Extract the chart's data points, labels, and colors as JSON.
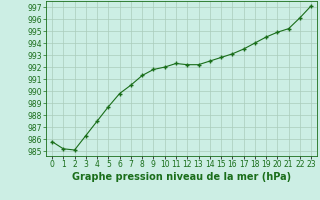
{
  "x": [
    0,
    1,
    2,
    3,
    4,
    5,
    6,
    7,
    8,
    9,
    10,
    11,
    12,
    13,
    14,
    15,
    16,
    17,
    18,
    19,
    20,
    21,
    22,
    23
  ],
  "y": [
    985.8,
    985.2,
    985.1,
    986.3,
    987.5,
    988.7,
    989.8,
    990.5,
    991.3,
    991.8,
    992.0,
    992.3,
    992.2,
    992.2,
    992.5,
    992.8,
    993.1,
    993.5,
    994.0,
    994.5,
    994.9,
    995.2,
    996.1,
    997.1
  ],
  "line_color": "#1a6e1a",
  "marker_color": "#1a6e1a",
  "bg_color": "#cceee4",
  "grid_color": "#aaccbb",
  "xlabel": "Graphe pression niveau de la mer (hPa)",
  "xlabel_color": "#1a6e1a",
  "ylabel_ticks": [
    985,
    986,
    987,
    988,
    989,
    990,
    991,
    992,
    993,
    994,
    995,
    996,
    997
  ],
  "ylim": [
    984.6,
    997.5
  ],
  "xlim": [
    -0.5,
    23.5
  ],
  "xtick_labels": [
    "0",
    "1",
    "2",
    "3",
    "4",
    "5",
    "6",
    "7",
    "8",
    "9",
    "10",
    "11",
    "12",
    "13",
    "14",
    "15",
    "16",
    "17",
    "18",
    "19",
    "20",
    "21",
    "22",
    "23"
  ],
  "tick_fontsize": 5.5,
  "xlabel_fontsize": 7
}
